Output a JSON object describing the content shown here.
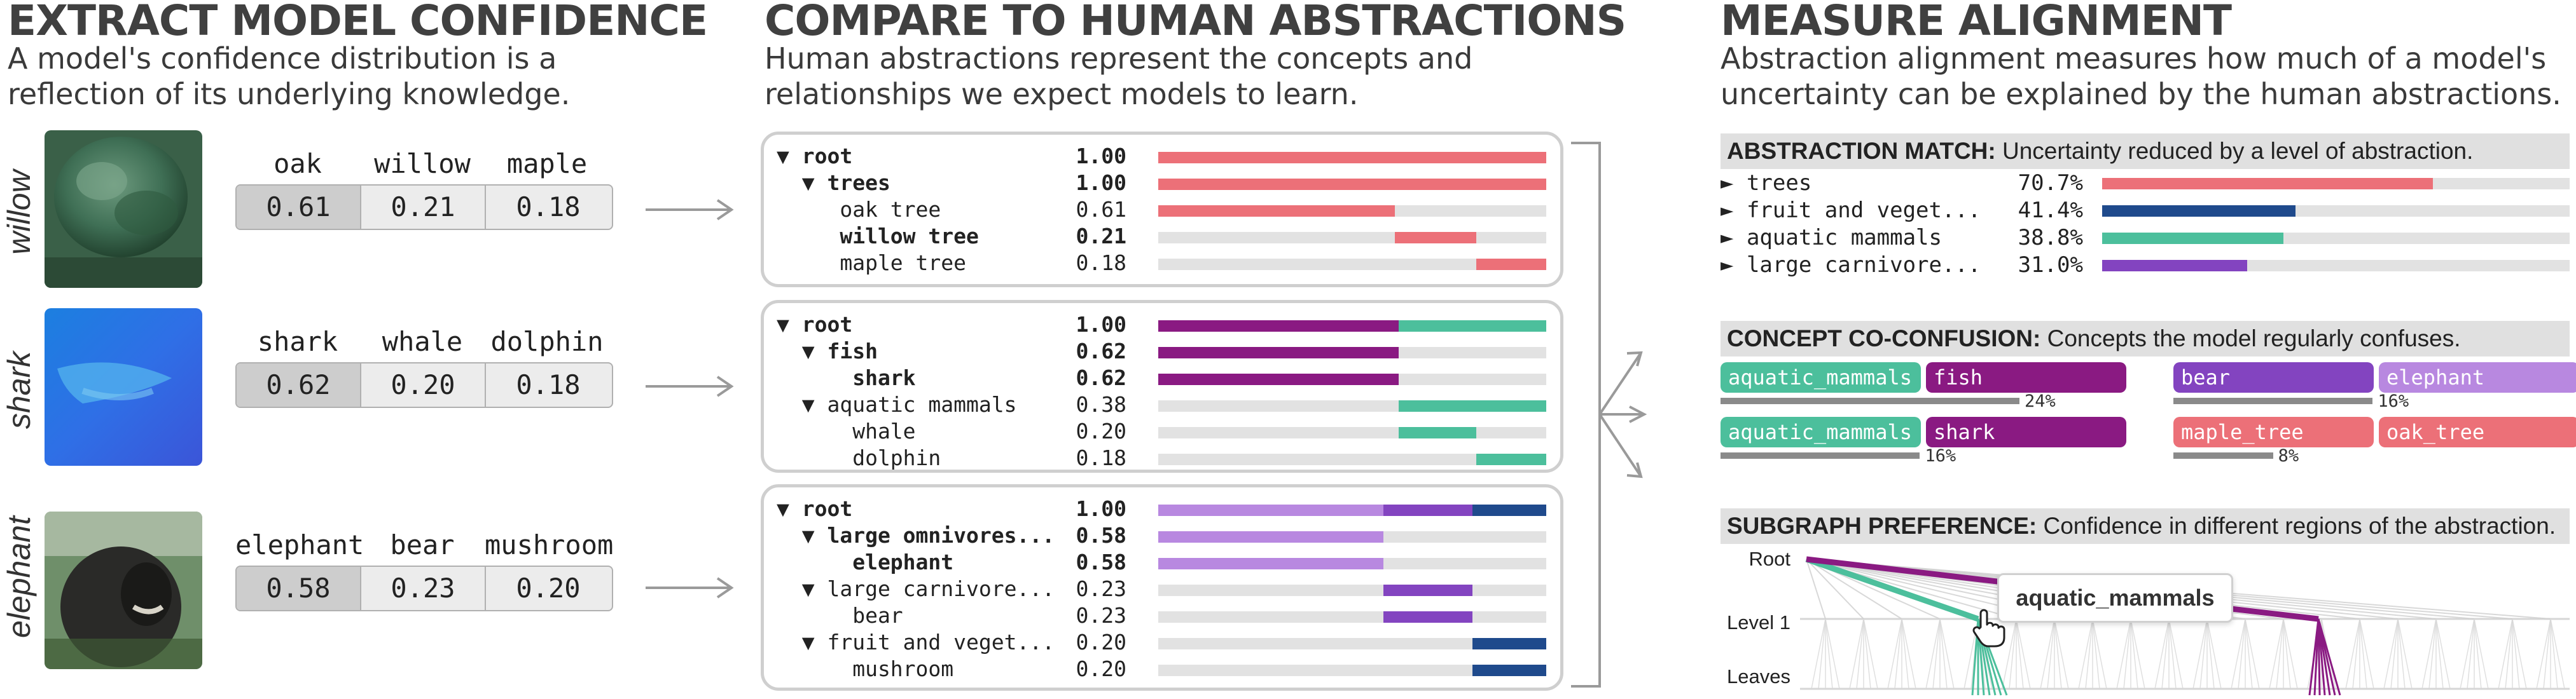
{
  "colors": {
    "red": "#ec7078",
    "purple_dark": "#8a1a82",
    "teal": "#4cbf9c",
    "lavender": "#b888e0",
    "violet": "#8344c0",
    "navy": "#1f4a8c",
    "grey_bar": "#e2e2e2"
  },
  "section1": {
    "title": "EXTRACT MODEL CONFIDENCE",
    "subtitle_line1": "A model's confidence distribution is a",
    "subtitle_line2": "reflection of its underlying knowledge.",
    "examples": [
      {
        "row_label": "willow",
        "image_icon": "tree-photo",
        "labels": [
          "oak",
          "willow",
          "maple"
        ],
        "values": [
          "0.61",
          "0.21",
          "0.18"
        ]
      },
      {
        "row_label": "shark",
        "image_icon": "shark-photo",
        "labels": [
          "shark",
          "whale",
          "dolphin"
        ],
        "values": [
          "0.62",
          "0.20",
          "0.18"
        ]
      },
      {
        "row_label": "elephant",
        "image_icon": "elephant-photo",
        "labels": [
          "elephant",
          "bear",
          "mushroom"
        ],
        "values": [
          "0.58",
          "0.23",
          "0.20"
        ]
      }
    ]
  },
  "section2": {
    "title": "COMPARE TO HUMAN ABSTRACTIONS",
    "subtitle_line1": "Human abstractions represent the concepts and",
    "subtitle_line2": "relationships we expect models to learn.",
    "trees": [
      {
        "rows": [
          {
            "label": "▼ root",
            "value": "1.00",
            "bold": true
          },
          {
            "label": "  ▼ trees",
            "value": "1.00",
            "bold": true
          },
          {
            "label": "     oak tree",
            "value": "0.61",
            "bold": false
          },
          {
            "label": "     willow tree",
            "value": "0.21",
            "bold": true
          },
          {
            "label": "     maple tree",
            "value": "0.18",
            "bold": false
          }
        ]
      },
      {
        "rows": [
          {
            "label": "▼ root",
            "value": "1.00",
            "bold": true
          },
          {
            "label": "  ▼ fish",
            "value": "0.62",
            "bold": true
          },
          {
            "label": "      shark",
            "value": "0.62",
            "bold": true
          },
          {
            "label": "  ▼ aquatic mammals",
            "value": "0.38",
            "bold": false
          },
          {
            "label": "      whale",
            "value": "0.20",
            "bold": false
          },
          {
            "label": "      dolphin",
            "value": "0.18",
            "bold": false
          }
        ]
      },
      {
        "rows": [
          {
            "label": "▼ root",
            "value": "1.00",
            "bold": true
          },
          {
            "label": "  ▼ large omnivores...",
            "value": "0.58",
            "bold": true
          },
          {
            "label": "      elephant",
            "value": "0.58",
            "bold": true
          },
          {
            "label": "  ▼ large carnivore...",
            "value": "0.23",
            "bold": false
          },
          {
            "label": "      bear",
            "value": "0.23",
            "bold": false
          },
          {
            "label": "  ▼ fruit and veget...",
            "value": "0.20",
            "bold": false
          },
          {
            "label": "      mushroom",
            "value": "0.20",
            "bold": false
          }
        ]
      }
    ]
  },
  "section3": {
    "title": "MEASURE ALIGNMENT",
    "subtitle_line1": "Abstraction alignment measures how much of a model's",
    "subtitle_line2": "uncertainty can be explained by the human abstractions.",
    "match": {
      "head_bold": "ABSTRACTION MATCH:",
      "head_rest": " Uncertainty reduced by a level of abstraction.",
      "rows": [
        {
          "label": "► trees",
          "pct": "70.7%",
          "value": 0.707,
          "color": "#ec7078"
        },
        {
          "label": "► fruit and veget...",
          "pct": "41.4%",
          "value": 0.414,
          "color": "#1f4a8c"
        },
        {
          "label": "► aquatic mammals",
          "pct": "38.8%",
          "value": 0.388,
          "color": "#4cbf9c"
        },
        {
          "label": "► large carnivore...",
          "pct": "31.0%",
          "value": 0.31,
          "color": "#8344c0"
        }
      ]
    },
    "coconf": {
      "head_bold": "CONCEPT CO-CONFUSION:",
      "head_rest": " Concepts the model regularly confuses.",
      "pairs": [
        {
          "a": "aquatic_mammals",
          "a_color": "#4cbf9c",
          "b": "fish",
          "b_color": "#8a1a82",
          "pct": "24%",
          "value": 0.24
        },
        {
          "a": "bear",
          "a_color": "#8344c0",
          "b": "elephant",
          "b_color": "#b888e0",
          "pct": "16%",
          "value": 0.16
        },
        {
          "a": "aquatic_mammals",
          "a_color": "#4cbf9c",
          "b": "shark",
          "b_color": "#8a1a82",
          "pct": "16%",
          "value": 0.16
        },
        {
          "a": "maple_tree",
          "a_color": "#ec7078",
          "b": "oak_tree",
          "b_color": "#ec7078",
          "pct": "8%",
          "value": 0.08
        }
      ]
    },
    "subgraph": {
      "head_bold": "SUBGRAPH PREFERENCE:",
      "head_rest": " Confidence in different regions of the abstraction.",
      "level_root": "Root",
      "level_1": "Level 1",
      "level_leaves": "Leaves",
      "tooltip": "aquatic_mammals",
      "cursor_icon": "hand-pointer-icon"
    }
  }
}
